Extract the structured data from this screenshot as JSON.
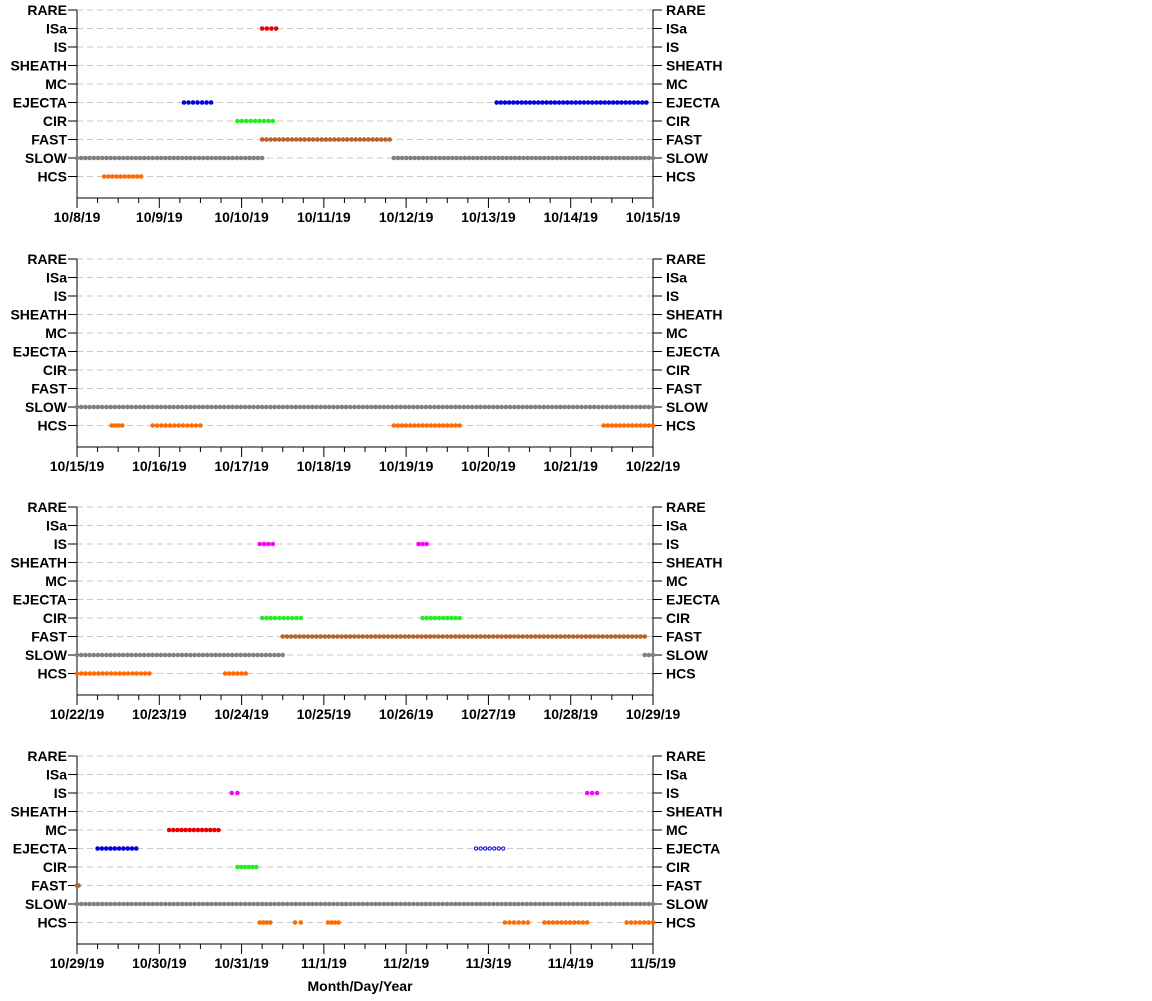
{
  "categories": [
    "RARE",
    "ISa",
    "IS",
    "SHEATH",
    "MC",
    "EJECTA",
    "CIR",
    "FAST",
    "SLOW",
    "HCS"
  ],
  "colors": {
    "SLOW": "#808080",
    "FAST": "#b8622b",
    "HCS": "#ff6a00",
    "EJECTA": "#0000dd",
    "CIR": "#22ee22",
    "ISa": "#ee0000",
    "IS": "#ff00ff",
    "MC": "#ee0000",
    "grid": "#c8c8c8"
  },
  "xlabel": "Month/Day/Year",
  "chart_data": [
    {
      "type": "scatter",
      "xlim": [
        "10/8/19",
        "10/15/19"
      ],
      "ticks": [
        "10/8/19",
        "10/9/19",
        "10/10/19",
        "10/11/19",
        "10/12/19",
        "10/13/19",
        "10/14/19",
        "10/15/19"
      ],
      "series": [
        {
          "category": "ISa",
          "segments": [
            [
              2.25,
              2.42
            ]
          ]
        },
        {
          "category": "EJECTA",
          "segments": [
            [
              1.3,
              1.63
            ],
            [
              5.1,
              6.92
            ]
          ]
        },
        {
          "category": "CIR",
          "segments": [
            [
              1.95,
              2.38
            ]
          ]
        },
        {
          "category": "FAST",
          "segments": [
            [
              2.25,
              3.8
            ]
          ]
        },
        {
          "category": "SLOW",
          "segments": [
            [
              0.0,
              2.25
            ],
            [
              3.85,
              7.0
            ]
          ]
        },
        {
          "category": "HCS",
          "segments": [
            [
              0.33,
              0.78
            ]
          ]
        }
      ]
    },
    {
      "type": "scatter",
      "xlim": [
        "10/15/19",
        "10/22/19"
      ],
      "ticks": [
        "10/15/19",
        "10/16/19",
        "10/17/19",
        "10/18/19",
        "10/19/19",
        "10/20/19",
        "10/21/19",
        "10/22/19"
      ],
      "series": [
        {
          "category": "SLOW",
          "segments": [
            [
              0.0,
              7.0
            ]
          ]
        },
        {
          "category": "HCS",
          "segments": [
            [
              0.42,
              0.55
            ],
            [
              0.92,
              1.5
            ],
            [
              3.85,
              4.65
            ],
            [
              6.4,
              7.0
            ]
          ]
        }
      ]
    },
    {
      "type": "scatter",
      "xlim": [
        "10/22/19",
        "10/29/19"
      ],
      "ticks": [
        "10/22/19",
        "10/23/19",
        "10/24/19",
        "10/25/19",
        "10/26/19",
        "10/27/19",
        "10/28/19",
        "10/29/19"
      ],
      "series": [
        {
          "category": "IS",
          "segments": [
            [
              2.22,
              2.38
            ],
            [
              4.15,
              4.25
            ]
          ]
        },
        {
          "category": "CIR",
          "segments": [
            [
              2.25,
              2.72
            ],
            [
              4.2,
              4.65
            ]
          ]
        },
        {
          "category": "FAST",
          "segments": [
            [
              2.5,
              6.9
            ]
          ]
        },
        {
          "category": "SLOW",
          "segments": [
            [
              0.0,
              2.5
            ],
            [
              6.9,
              7.0
            ]
          ]
        },
        {
          "category": "HCS",
          "segments": [
            [
              0.0,
              0.88
            ],
            [
              1.8,
              2.05
            ]
          ]
        }
      ]
    },
    {
      "type": "scatter",
      "xlim": [
        "10/29/19",
        "11/5/19"
      ],
      "ticks": [
        "10/29/19",
        "10/30/19",
        "10/31/19",
        "11/1/19",
        "11/2/19",
        "11/3/19",
        "11/4/19",
        "11/5/19"
      ],
      "series": [
        {
          "category": "IS",
          "segments": [
            [
              1.88,
              1.95
            ],
            [
              6.2,
              6.32
            ]
          ]
        },
        {
          "category": "MC",
          "segments": [
            [
              1.12,
              1.72
            ]
          ]
        },
        {
          "category": "EJECTA",
          "segments": [
            [
              0.25,
              0.72
            ]
          ]
        },
        {
          "category": "EJECTA",
          "segments": [
            [
              4.85,
              5.18
            ]
          ],
          "hollow": true
        },
        {
          "category": "CIR",
          "segments": [
            [
              1.95,
              2.18
            ]
          ]
        },
        {
          "category": "FAST",
          "segments": [
            [
              0.0,
              0.02
            ]
          ]
        },
        {
          "category": "SLOW",
          "segments": [
            [
              0.0,
              7.0
            ]
          ]
        },
        {
          "category": "HCS",
          "segments": [
            [
              2.22,
              2.35
            ],
            [
              2.65,
              2.72
            ],
            [
              3.05,
              3.18
            ],
            [
              5.2,
              5.48
            ],
            [
              5.68,
              6.2
            ],
            [
              6.68,
              7.0
            ]
          ]
        }
      ]
    }
  ]
}
